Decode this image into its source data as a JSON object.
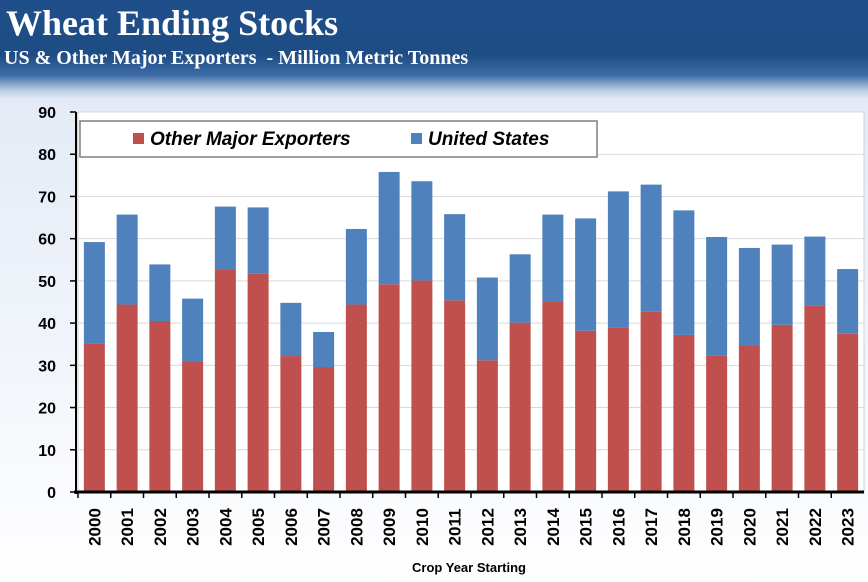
{
  "header": {
    "title": "Wheat Ending Stocks",
    "subtitle": "US & Other Major Exporters  - Million Metric Tonnes"
  },
  "chart_data": {
    "type": "bar",
    "stacked": true,
    "categories": [
      "2000",
      "2001",
      "2002",
      "2003",
      "2004",
      "2005",
      "2006",
      "2007",
      "2008",
      "2009",
      "2010",
      "2011",
      "2012",
      "2013",
      "2014",
      "2015",
      "2016",
      "2017",
      "2018",
      "2019",
      "2020",
      "2021",
      "2022",
      "2023"
    ],
    "series": [
      {
        "name": "Other Major Exporters",
        "color": "#c0504d",
        "values": [
          35.2,
          44.4,
          40.5,
          30.9,
          52.8,
          51.8,
          32.2,
          29.6,
          44.4,
          49.2,
          50.1,
          45.4,
          31.2,
          40.1,
          45.1,
          38.2,
          39.0,
          42.8,
          37.2,
          32.3,
          34.8,
          39.6,
          44.2,
          37.6
        ]
      },
      {
        "name": "United States",
        "color": "#4f81bd",
        "values": [
          24.0,
          21.3,
          13.4,
          14.9,
          14.8,
          15.6,
          12.6,
          8.3,
          17.9,
          26.6,
          23.5,
          20.4,
          19.6,
          16.2,
          20.6,
          26.6,
          32.2,
          30.0,
          29.5,
          28.1,
          23.0,
          19.0,
          16.3,
          15.2
        ]
      }
    ],
    "xlabel": "Crop Year Starting",
    "ylabel": "",
    "ylim": [
      0,
      90
    ],
    "yticks": [
      0,
      10,
      20,
      30,
      40,
      50,
      60,
      70,
      80,
      90
    ],
    "grid": true,
    "legend_placement": "top-left"
  }
}
